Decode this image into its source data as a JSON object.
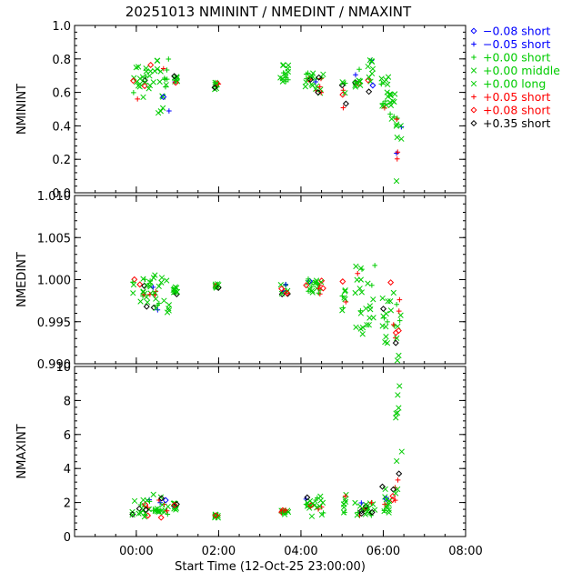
{
  "title": "20251013 NMININT / NMEDINT / NMAXINT",
  "legend": [
    {
      "symbol": "diamond",
      "label": "−0.08 short",
      "color": "#0000ff"
    },
    {
      "symbol": "plus",
      "label": "−0.05 short",
      "color": "#0000ff"
    },
    {
      "symbol": "plus",
      "label": "+0.00 short",
      "color": "#00cc00"
    },
    {
      "symbol": "cross",
      "label": "+0.00 middle",
      "color": "#00cc00"
    },
    {
      "symbol": "cross",
      "label": "+0.00 long",
      "color": "#00cc00"
    },
    {
      "symbol": "plus",
      "label": "+0.05 short",
      "color": "#ff0000"
    },
    {
      "symbol": "diamond",
      "label": "+0.08 short",
      "color": "#ff0000"
    },
    {
      "symbol": "diamond",
      "label": "+0.35 short",
      "color": "#000000"
    }
  ],
  "chart_data": [
    {
      "type": "scatter",
      "ylabel": "NMININT",
      "xlim": [
        -0.5,
        9.0
      ],
      "ylim": [
        0.0,
        1.0
      ],
      "yticks": [
        "0.0",
        "0.2",
        "0.4",
        "0.6",
        "0.8",
        "1.0"
      ],
      "ytick_values": [
        0.0,
        0.2,
        0.4,
        0.6,
        0.8,
        1.0
      ],
      "clusters": [
        {
          "x": [
            0.9,
            1.35
          ],
          "y": [
            0.53,
            0.77
          ]
        },
        {
          "x": [
            1.4,
            1.8
          ],
          "y": [
            0.45,
            0.8
          ]
        },
        {
          "x": [
            1.9,
            2.0
          ],
          "y": [
            0.65,
            0.71
          ]
        },
        {
          "x": [
            2.9,
            3.0
          ],
          "y": [
            0.61,
            0.66
          ]
        },
        {
          "x": [
            4.5,
            4.7
          ],
          "y": [
            0.64,
            0.77
          ]
        },
        {
          "x": [
            5.1,
            5.3
          ],
          "y": [
            0.62,
            0.72
          ]
        },
        {
          "x": [
            5.35,
            5.55
          ],
          "y": [
            0.58,
            0.71
          ]
        },
        {
          "x": [
            6.0,
            6.1
          ],
          "y": [
            0.48,
            0.67
          ]
        },
        {
          "x": [
            6.3,
            6.45
          ],
          "y": [
            0.63,
            0.74
          ]
        },
        {
          "x": [
            6.6,
            6.75
          ],
          "y": [
            0.6,
            0.8
          ]
        },
        {
          "x": [
            6.95,
            7.15
          ],
          "y": [
            0.45,
            0.7
          ]
        },
        {
          "x": [
            7.15,
            7.3
          ],
          "y": [
            0.38,
            0.6
          ]
        },
        {
          "x": [
            7.3,
            7.45
          ],
          "y": [
            0.02,
            0.45
          ]
        }
      ]
    },
    {
      "type": "scatter",
      "ylabel": "NMEDINT",
      "xlim": [
        -0.5,
        9.0
      ],
      "ylim": [
        0.99,
        1.01
      ],
      "yticks": [
        "0.990",
        "0.995",
        "1.000",
        "1.005",
        "1.010"
      ],
      "ytick_values": [
        0.99,
        0.995,
        1.0,
        1.005,
        1.01
      ],
      "clusters": [
        {
          "x": [
            0.9,
            1.35
          ],
          "y": [
            0.9966,
            1.0003
          ]
        },
        {
          "x": [
            1.4,
            1.8
          ],
          "y": [
            0.9955,
            1.0006
          ]
        },
        {
          "x": [
            1.9,
            2.0
          ],
          "y": [
            0.998,
            0.9992
          ]
        },
        {
          "x": [
            2.9,
            3.0
          ],
          "y": [
            0.9988,
            0.9995
          ]
        },
        {
          "x": [
            4.5,
            4.7
          ],
          "y": [
            0.9982,
            0.9995
          ]
        },
        {
          "x": [
            5.1,
            5.55
          ],
          "y": [
            0.998,
            1.0001
          ]
        },
        {
          "x": [
            6.0,
            6.1
          ],
          "y": [
            0.9955,
            1.0005
          ]
        },
        {
          "x": [
            6.3,
            6.8
          ],
          "y": [
            0.993,
            1.0018
          ]
        },
        {
          "x": [
            6.95,
            7.3
          ],
          "y": [
            0.992,
            1.0
          ]
        },
        {
          "x": [
            7.3,
            7.45
          ],
          "y": [
            0.9902,
            0.998
          ]
        }
      ]
    },
    {
      "type": "scatter",
      "ylabel": "NMAXINT",
      "xlabel": "Start Time (12-Oct-25 23:00:00)",
      "xlim": [
        -0.5,
        9.0
      ],
      "ylim": [
        0,
        10
      ],
      "xticks": [
        "00:00",
        "02:00",
        "04:00",
        "06:00",
        "08:00"
      ],
      "xtick_values": [
        1,
        3,
        5,
        7,
        9
      ],
      "yticks": [
        "0",
        "2",
        "4",
        "6",
        "8",
        "10"
      ],
      "ytick_values": [
        0,
        2,
        4,
        6,
        8,
        10
      ],
      "clusters": [
        {
          "x": [
            0.9,
            1.35
          ],
          "y": [
            1.1,
            2.2
          ]
        },
        {
          "x": [
            1.4,
            1.8
          ],
          "y": [
            1.1,
            2.5
          ]
        },
        {
          "x": [
            1.9,
            2.0
          ],
          "y": [
            1.5,
            2.1
          ]
        },
        {
          "x": [
            2.9,
            3.0
          ],
          "y": [
            1.1,
            1.3
          ]
        },
        {
          "x": [
            4.5,
            4.7
          ],
          "y": [
            1.3,
            1.6
          ]
        },
        {
          "x": [
            5.1,
            5.55
          ],
          "y": [
            1.1,
            2.4
          ]
        },
        {
          "x": [
            6.0,
            6.1
          ],
          "y": [
            1.3,
            2.5
          ]
        },
        {
          "x": [
            6.3,
            6.8
          ],
          "y": [
            1.2,
            2.0
          ]
        },
        {
          "x": [
            6.95,
            7.3
          ],
          "y": [
            1.2,
            3.0
          ]
        },
        {
          "x": [
            7.3,
            7.45
          ],
          "y": [
            1.4,
            9.0
          ]
        }
      ]
    }
  ]
}
